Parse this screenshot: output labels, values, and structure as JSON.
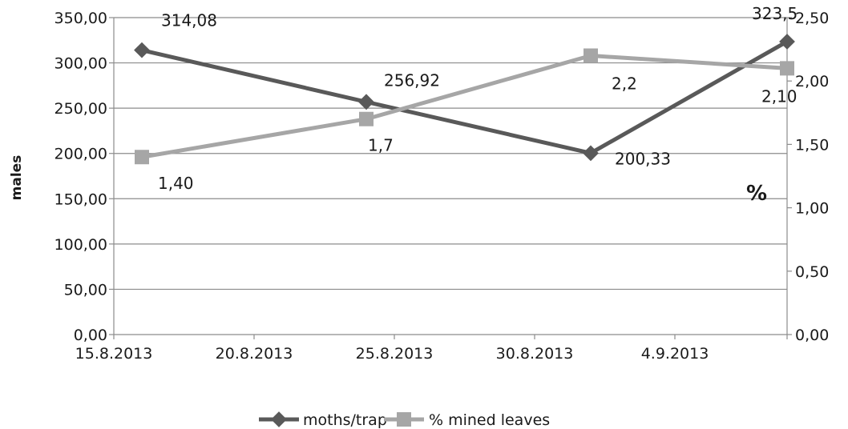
{
  "chart_data": {
    "type": "line",
    "title": "",
    "xlabel": "",
    "ylabel": "males",
    "y2label": "%",
    "x_tick_labels": [
      "15.8.2013",
      "20.8.2013",
      "25.8.2013",
      "30.8.2013",
      "4.9.2013"
    ],
    "x_ticks": [
      "2013-08-15",
      "2013-08-20",
      "2013-08-25",
      "2013-08-30",
      "2013-09-04"
    ],
    "xlim": [
      "2013-08-15",
      "2013-09-08"
    ],
    "ylim": [
      0,
      350
    ],
    "y_tick_labels": [
      "0,00",
      "50,00",
      "100,00",
      "150,00",
      "200,00",
      "250,00",
      "300,00",
      "350,00"
    ],
    "y2lim": [
      0,
      2.5
    ],
    "y2_tick_labels": [
      "0,00",
      "0,50",
      "1,00",
      "1,50",
      "2,00",
      "2,50"
    ],
    "grid": true,
    "legend_position": "bottom",
    "series": [
      {
        "name": "moths/trap",
        "axis": "left",
        "color": "#595959",
        "marker": "diamond",
        "x": [
          "2013-08-16",
          "2013-08-24",
          "2013-09-01",
          "2013-09-08"
        ],
        "values": [
          314.08,
          256.92,
          200.33,
          323.5
        ],
        "labels": [
          "314,08",
          "256,92",
          "200,33",
          "323,5"
        ]
      },
      {
        "name": "% mined leaves",
        "axis": "right",
        "color": "#a6a6a6",
        "marker": "square",
        "x": [
          "2013-08-16",
          "2013-08-24",
          "2013-09-01",
          "2013-09-08"
        ],
        "values": [
          1.4,
          1.7,
          2.2,
          2.1
        ],
        "labels": [
          "1,40",
          "1,7",
          "2,2",
          "2,10"
        ]
      }
    ]
  }
}
